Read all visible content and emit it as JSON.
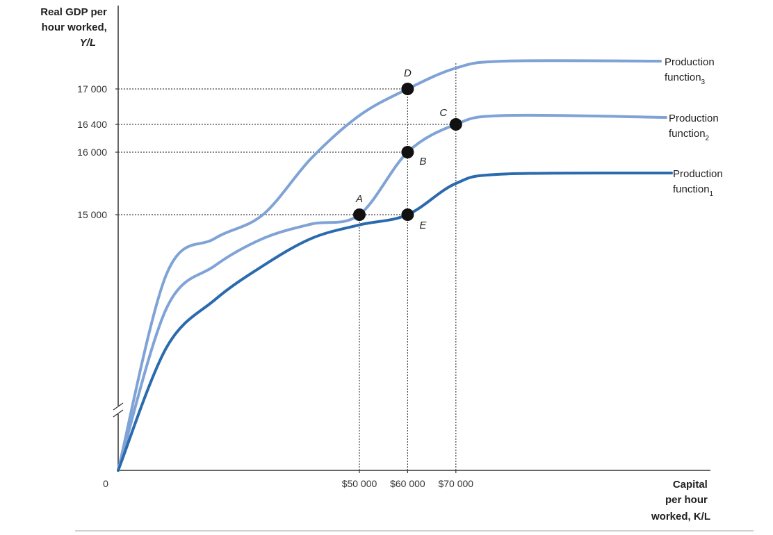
{
  "chart_data": {
    "type": "line",
    "ylabel_lines": [
      "Real GDP per",
      "hour worked,",
      "Y/L"
    ],
    "xlabel_lines": [
      "Capital",
      "per hour",
      "worked, K/L"
    ],
    "origin_label": "0",
    "y_ticks": [
      {
        "value": 17000,
        "label": "17 000"
      },
      {
        "value": 16400,
        "label": "16 400"
      },
      {
        "value": 16000,
        "label": "16 000"
      },
      {
        "value": 15000,
        "label": "15 000"
      }
    ],
    "x_ticks": [
      {
        "value": 50000,
        "label": "$50 000"
      },
      {
        "value": 60000,
        "label": "$60 000"
      },
      {
        "value": 70000,
        "label": "$70 000"
      }
    ],
    "axis_break": "y",
    "series": [
      {
        "name": "Production function3",
        "label_main": "Production",
        "label_line2": "function",
        "label_sub": "3",
        "color": "#7fa3d6",
        "points": [
          [
            0,
            0
          ],
          [
            10000,
            11500
          ],
          [
            20000,
            13600
          ],
          [
            30000,
            15000
          ],
          [
            40000,
            15900
          ],
          [
            50000,
            16550
          ],
          [
            60000,
            17000
          ],
          [
            70000,
            17300
          ],
          [
            80000,
            17400
          ]
        ]
      },
      {
        "name": "Production function2",
        "label_main": "Production",
        "label_line2": "function",
        "label_sub": "2",
        "color": "#7fa3d6",
        "points": [
          [
            0,
            0
          ],
          [
            10000,
            9500
          ],
          [
            20000,
            12000
          ],
          [
            30000,
            13600
          ],
          [
            40000,
            14450
          ],
          [
            50000,
            15000
          ],
          [
            60000,
            16000
          ],
          [
            70000,
            16400
          ],
          [
            80000,
            16550
          ]
        ]
      },
      {
        "name": "Production function1",
        "label_main": "Production",
        "label_line2": "function",
        "label_sub": "1",
        "color": "#2a6aad",
        "points": [
          [
            0,
            0
          ],
          [
            10000,
            7200
          ],
          [
            20000,
            10000
          ],
          [
            30000,
            12000
          ],
          [
            40000,
            13600
          ],
          [
            50000,
            14400
          ],
          [
            60000,
            15000
          ],
          [
            70000,
            15500
          ],
          [
            80000,
            15650
          ]
        ]
      }
    ],
    "labeled_points": [
      {
        "label": "A",
        "x": 50000,
        "y": 15000,
        "series": "Production function2"
      },
      {
        "label": "B",
        "x": 60000,
        "y": 16000,
        "series": "Production function2"
      },
      {
        "label": "C",
        "x": 70000,
        "y": 16400,
        "series": "Production function2"
      },
      {
        "label": "D",
        "x": 60000,
        "y": 17000,
        "series": "Production function3"
      },
      {
        "label": "E",
        "x": 60000,
        "y": 15000,
        "series": "Production function1"
      }
    ]
  }
}
